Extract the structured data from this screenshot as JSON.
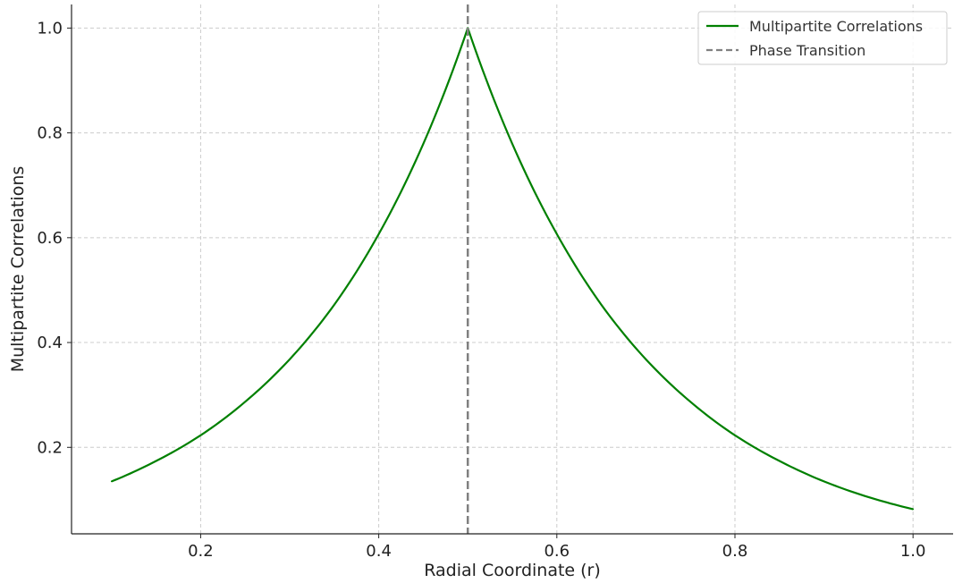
{
  "chart_data": {
    "type": "line",
    "title": "",
    "xlabel": "Radial Coordinate (r)",
    "ylabel": "Multipartite Correlations",
    "xlim": [
      0.055,
      1.045
    ],
    "ylim": [
      0.035,
      1.045
    ],
    "xticks": [
      {
        "value": 0.2,
        "label": "0.2"
      },
      {
        "value": 0.4,
        "label": "0.4"
      },
      {
        "value": 0.6,
        "label": "0.6"
      },
      {
        "value": 0.8,
        "label": "0.8"
      },
      {
        "value": 1.0,
        "label": "1.0"
      }
    ],
    "yticks": [
      {
        "value": 0.2,
        "label": "0.2"
      },
      {
        "value": 0.4,
        "label": "0.4"
      },
      {
        "value": 0.6,
        "label": "0.6"
      },
      {
        "value": 0.8,
        "label": "0.8"
      },
      {
        "value": 1.0,
        "label": "1.0"
      }
    ],
    "grid": true,
    "legend_position": "top-right",
    "series": [
      {
        "name": "Multipartite Correlations",
        "color": "#008000",
        "style": "solid",
        "x": [
          0.1,
          0.15,
          0.2,
          0.25,
          0.3,
          0.35,
          0.4,
          0.45,
          0.5,
          0.55,
          0.6,
          0.65,
          0.7,
          0.75,
          0.8,
          0.85,
          0.9,
          0.95,
          1.0
        ],
        "y": [
          0.135,
          0.174,
          0.223,
          0.287,
          0.368,
          0.472,
          0.607,
          0.779,
          1.0,
          0.779,
          0.607,
          0.472,
          0.368,
          0.287,
          0.223,
          0.174,
          0.135,
          0.105,
          0.082
        ]
      }
    ],
    "reference_lines": [
      {
        "name": "Phase Transition",
        "orientation": "vertical",
        "x": 0.5,
        "color": "#808080",
        "style": "dashed"
      }
    ]
  }
}
